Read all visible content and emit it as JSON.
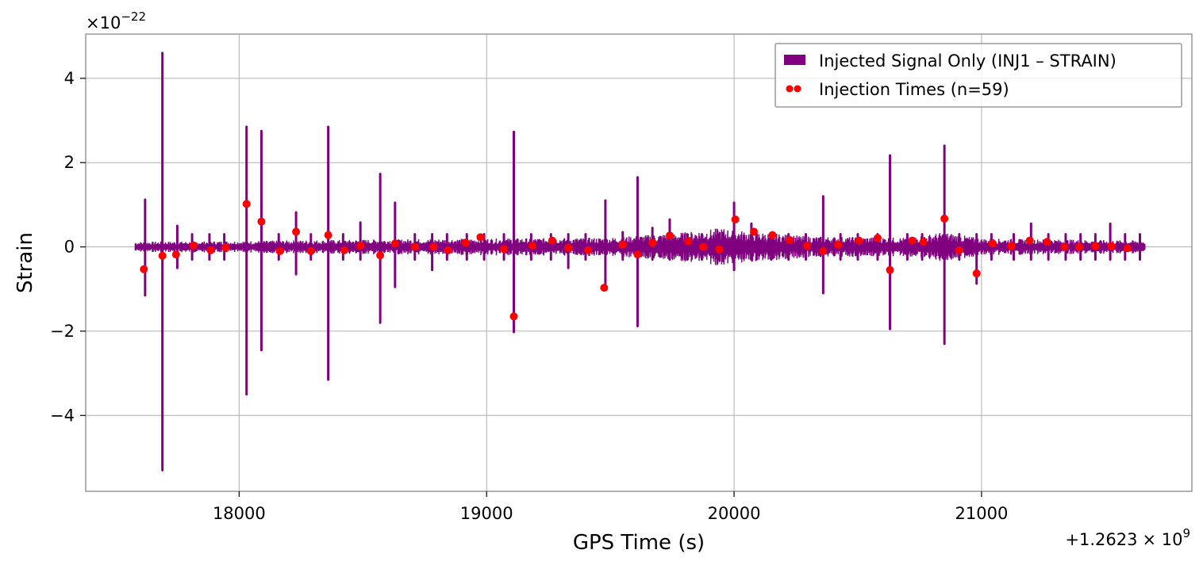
{
  "chart_data": {
    "type": "line",
    "xlabel": "GPS Time (s)",
    "ylabel": "Strain",
    "x_offset_text": "+1.2623 × 10^9",
    "x_offset_base": "+1.2623",
    "x_offset_times": "× 10",
    "x_offset_exp": "9",
    "y_scale_text": "×10^−22",
    "y_scale_base": "×10",
    "y_scale_exp": "−22",
    "xlim": [
      17380,
      21850
    ],
    "ylim": [
      -5.8,
      5.05
    ],
    "xticks": [
      18000,
      19000,
      20000,
      21000
    ],
    "xtick_labels": [
      "18000",
      "19000",
      "20000",
      "21000"
    ],
    "yticks": [
      -4,
      -2,
      0,
      2,
      4
    ],
    "ytick_labels": [
      "−4",
      "−2",
      "0",
      "2",
      "4"
    ],
    "grid": true,
    "legend_position": "top-right",
    "colors": {
      "signal": "#800080",
      "marker": "#ff0000",
      "grid": "#b0b0b0",
      "frame": "#999999"
    },
    "series": [
      {
        "name": "Injected Signal Only (INJ1 – STRAIN)",
        "kind": "line",
        "color": "#800080",
        "x_range": [
          17580,
          21660
        ],
        "noise_envelope": [
          [
            17580,
            0.12
          ],
          [
            18000,
            0.14
          ],
          [
            18600,
            0.18
          ],
          [
            19000,
            0.2
          ],
          [
            19500,
            0.22
          ],
          [
            19800,
            0.35
          ],
          [
            19950,
            0.45
          ],
          [
            20000,
            0.4
          ],
          [
            20300,
            0.25
          ],
          [
            20700,
            0.22
          ],
          [
            20850,
            0.35
          ],
          [
            21000,
            0.2
          ],
          [
            21660,
            0.15
          ]
        ],
        "spikes": [
          [
            17620,
            1.12,
            -1.15
          ],
          [
            17690,
            4.6,
            -5.3
          ],
          [
            17750,
            0.5,
            -0.5
          ],
          [
            17810,
            0.3,
            -0.3
          ],
          [
            17880,
            0.3,
            -0.3
          ],
          [
            17940,
            0.3,
            -0.3
          ],
          [
            18030,
            2.85,
            -3.5
          ],
          [
            18090,
            2.75,
            -2.45
          ],
          [
            18160,
            0.3,
            -0.3
          ],
          [
            18230,
            0.82,
            -0.65
          ],
          [
            18290,
            0.3,
            -0.3
          ],
          [
            18360,
            2.85,
            -3.15
          ],
          [
            18420,
            0.3,
            -0.3
          ],
          [
            18490,
            0.58,
            -0.3
          ],
          [
            18570,
            1.73,
            -1.8
          ],
          [
            18630,
            1.05,
            -0.95
          ],
          [
            18710,
            0.3,
            -0.3
          ],
          [
            18780,
            0.3,
            -0.55
          ],
          [
            18840,
            0.3,
            -0.3
          ],
          [
            18920,
            0.3,
            -0.3
          ],
          [
            18990,
            0.3,
            -0.3
          ],
          [
            19070,
            0.3,
            -0.3
          ],
          [
            19110,
            2.73,
            -2.02
          ],
          [
            19180,
            0.3,
            -0.3
          ],
          [
            19260,
            0.3,
            -0.3
          ],
          [
            19330,
            0.3,
            -0.5
          ],
          [
            19400,
            0.3,
            -0.3
          ],
          [
            19480,
            1.1,
            -0.95
          ],
          [
            19550,
            0.35,
            -0.3
          ],
          [
            19610,
            1.65,
            -1.88
          ],
          [
            19670,
            0.45,
            -0.3
          ],
          [
            19740,
            0.65,
            -0.3
          ],
          [
            19810,
            0.3,
            -0.3
          ],
          [
            19870,
            0.3,
            -0.3
          ],
          [
            19940,
            0.3,
            -0.3
          ],
          [
            20000,
            1.05,
            -0.55
          ],
          [
            20070,
            0.55,
            -0.3
          ],
          [
            20150,
            0.3,
            -0.3
          ],
          [
            20220,
            0.3,
            -0.3
          ],
          [
            20290,
            0.3,
            -0.3
          ],
          [
            20360,
            1.2,
            -1.1
          ],
          [
            20430,
            0.3,
            -0.3
          ],
          [
            20500,
            0.3,
            -0.3
          ],
          [
            20580,
            0.3,
            -0.3
          ],
          [
            20630,
            2.17,
            -1.95
          ],
          [
            20700,
            0.3,
            -0.3
          ],
          [
            20760,
            0.3,
            -0.3
          ],
          [
            20850,
            2.4,
            -2.3
          ],
          [
            20910,
            0.3,
            -0.3
          ],
          [
            20980,
            0.3,
            -0.87
          ],
          [
            21040,
            0.3,
            -0.3
          ],
          [
            21130,
            0.3,
            -0.3
          ],
          [
            21200,
            0.55,
            -0.3
          ],
          [
            21270,
            0.3,
            -0.3
          ],
          [
            21340,
            0.3,
            -0.3
          ],
          [
            21400,
            0.3,
            -0.3
          ],
          [
            21460,
            0.3,
            -0.3
          ],
          [
            21520,
            0.55,
            -0.3
          ],
          [
            21580,
            0.3,
            -0.3
          ],
          [
            21640,
            0.3,
            -0.3
          ]
        ]
      },
      {
        "name": "Injection Times (n=59)",
        "kind": "scatter",
        "color": "#ff0000",
        "points": [
          [
            17615,
            -0.53
          ],
          [
            17690,
            -0.21
          ],
          [
            17745,
            -0.18
          ],
          [
            17815,
            0.03
          ],
          [
            17885,
            -0.08
          ],
          [
            17945,
            -0.02
          ],
          [
            18030,
            1.02
          ],
          [
            18090,
            0.6
          ],
          [
            18165,
            -0.1
          ],
          [
            18230,
            0.36
          ],
          [
            18290,
            -0.1
          ],
          [
            18360,
            0.28
          ],
          [
            18425,
            -0.08
          ],
          [
            18490,
            0.03
          ],
          [
            18570,
            -0.2
          ],
          [
            18630,
            0.08
          ],
          [
            18710,
            0.0
          ],
          [
            18785,
            0.0
          ],
          [
            18845,
            -0.08
          ],
          [
            18915,
            0.1
          ],
          [
            18975,
            0.23
          ],
          [
            19070,
            -0.05
          ],
          [
            19110,
            -1.65
          ],
          [
            19185,
            0.03
          ],
          [
            19265,
            0.15
          ],
          [
            19330,
            -0.02
          ],
          [
            19410,
            -0.08
          ],
          [
            19475,
            -0.97
          ],
          [
            19550,
            0.05
          ],
          [
            19610,
            -0.18
          ],
          [
            19670,
            0.1
          ],
          [
            19740,
            0.27
          ],
          [
            19815,
            0.13
          ],
          [
            19875,
            0.0
          ],
          [
            19940,
            -0.06
          ],
          [
            20005,
            0.65
          ],
          [
            20080,
            0.36
          ],
          [
            20155,
            0.28
          ],
          [
            20225,
            0.16
          ],
          [
            20295,
            0.03
          ],
          [
            20360,
            -0.1
          ],
          [
            20420,
            0.05
          ],
          [
            20505,
            0.15
          ],
          [
            20580,
            0.21
          ],
          [
            20630,
            -0.55
          ],
          [
            20720,
            0.15
          ],
          [
            20765,
            0.12
          ],
          [
            20850,
            0.67
          ],
          [
            20910,
            -0.08
          ],
          [
            20980,
            -0.63
          ],
          [
            21045,
            0.08
          ],
          [
            21120,
            0.02
          ],
          [
            21195,
            0.15
          ],
          [
            21265,
            0.12
          ],
          [
            21335,
            0.0
          ],
          [
            21395,
            0.0
          ],
          [
            21460,
            0.02
          ],
          [
            21525,
            0.02
          ],
          [
            21590,
            -0.03
          ]
        ]
      }
    ]
  }
}
